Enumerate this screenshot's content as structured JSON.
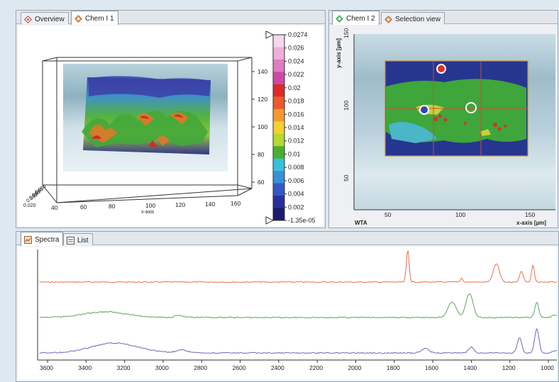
{
  "chem_panel": {
    "tabs": [
      {
        "label": "Overview",
        "active": false,
        "icon": "overview-diamond-icon"
      },
      {
        "label": "Chem I 1",
        "active": true,
        "icon": "chem-image-diamond-icon"
      }
    ],
    "plot3d": {
      "y_ticks": [
        "140",
        "120",
        "100",
        "80",
        "60"
      ],
      "x_ticks": [
        "40",
        "60",
        "80",
        "100",
        "120",
        "140",
        "160"
      ],
      "x_label": "x-axis",
      "z_ticks": [
        "0.000",
        "0.000",
        "0.000",
        "0.000",
        "0.020"
      ]
    },
    "colorbar": {
      "labels": [
        "0.0274",
        "0.026",
        "0.024",
        "0.022",
        "0.02",
        "0.018",
        "0.016",
        "0.014",
        "0.012",
        "0.01",
        "0.008",
        "0.006",
        "0.004",
        "0.002",
        "-1.35e-05"
      ],
      "colors": [
        "#f6d6ec",
        "#eeb0d8",
        "#e07cc0",
        "#cc4aa6",
        "#dc2a2a",
        "#ea5a2c",
        "#f49a30",
        "#f4d030",
        "#b6d830",
        "#48b030",
        "#3ac0d8",
        "#3890d8",
        "#3458c4",
        "#2a2e9c",
        "#1c1a6c"
      ]
    }
  },
  "map_panel": {
    "tabs": [
      {
        "label": "Chem I 2",
        "active": true,
        "icon": "chem-image-diamond-icon"
      },
      {
        "label": "Selection view",
        "active": false,
        "icon": "selection-diamond-icon"
      }
    ],
    "y_axis_label": "y-axis [µm]",
    "y_ticks": [
      "150",
      "100",
      "50"
    ],
    "x_ticks": [
      "50",
      "100",
      "150"
    ],
    "x_axis_label": "x-axis [µm]",
    "corner_label": "WTA",
    "markers": [
      {
        "name": "red-marker",
        "color": "#e0302c"
      },
      {
        "name": "blue-marker",
        "color": "#3646b0"
      },
      {
        "name": "white-marker",
        "color": "#ffffff"
      }
    ]
  },
  "spectra_panel": {
    "tabs": [
      {
        "label": "Spectra",
        "active": true,
        "icon": "spectra-icon"
      },
      {
        "label": "List",
        "active": false,
        "icon": "list-icon"
      }
    ],
    "x_ticks": [
      "3600",
      "3400",
      "3200",
      "3000",
      "2800",
      "2600",
      "2400",
      "2200",
      "2000",
      "1800",
      "1600",
      "1400",
      "1200",
      "1000"
    ],
    "series": [
      {
        "color": "#e8704c"
      },
      {
        "color": "#5fa35a"
      },
      {
        "color": "#6a6ab8"
      }
    ]
  }
}
